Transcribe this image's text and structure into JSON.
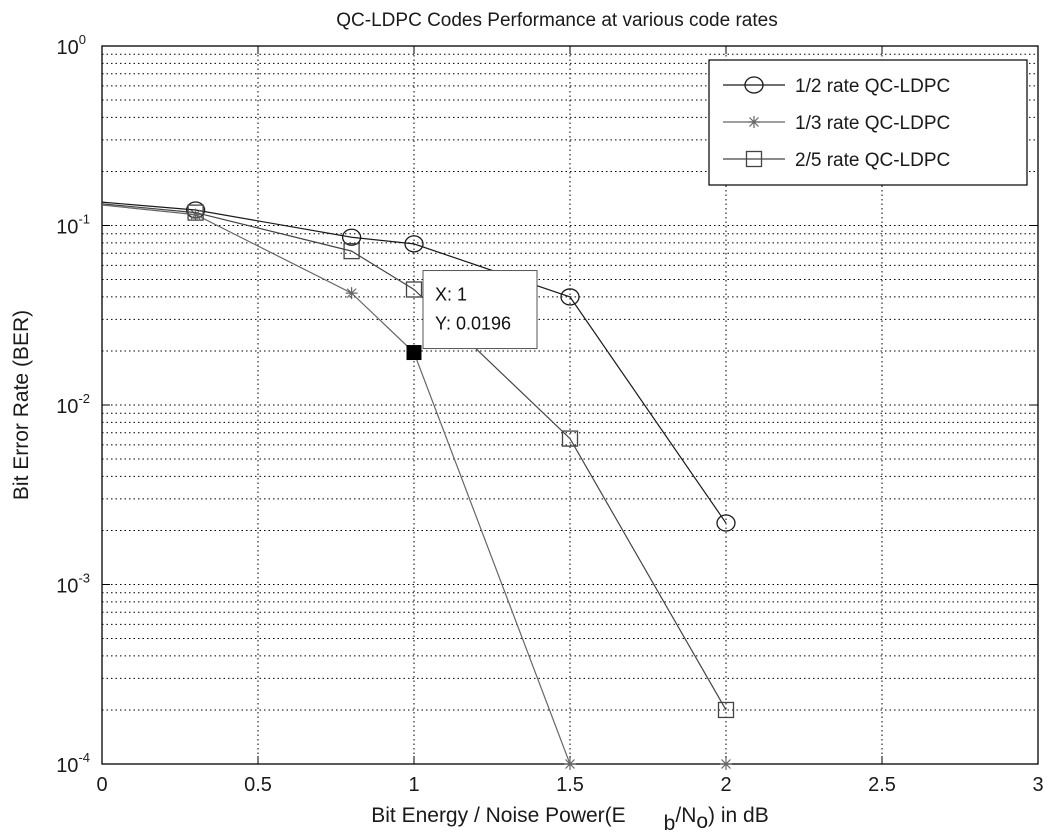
{
  "chart_data": {
    "type": "line",
    "title": "QC-LDPC  Codes Performance at various code rates",
    "xlabel": {
      "prefix": "Bit Energy / Noise Power(E",
      "sub1": "b",
      "mid": "/N",
      "sub2": "o",
      "suffix": ") in dB"
    },
    "ylabel": "Bit Error Rate (BER)",
    "xlim": [
      0,
      3
    ],
    "ylim": [
      0.0001,
      1
    ],
    "yscale": "log",
    "grid": true,
    "legend_position": "top-right",
    "x_ticks": [
      "0",
      "0.5",
      "1",
      "1.5",
      "2",
      "2.5",
      "3"
    ],
    "y_ticks": [
      {
        "base": "10",
        "exp": "0"
      },
      {
        "base": "10",
        "exp": "-1"
      },
      {
        "base": "10",
        "exp": "-2"
      },
      {
        "base": "10",
        "exp": "-3"
      },
      {
        "base": "10",
        "exp": "-4"
      }
    ],
    "series": [
      {
        "name": "1/2 rate QC-LDPC",
        "marker": "circle",
        "color": "#1a1a1a",
        "x": [
          0,
          0.3,
          0.8,
          1.0,
          1.5,
          2.0
        ],
        "y": [
          0.135,
          0.122,
          0.086,
          0.079,
          0.04,
          0.0022
        ]
      },
      {
        "name": "1/3 rate QC-LDPC",
        "marker": "star",
        "color": "#666666",
        "x": [
          0,
          0.3,
          0.8,
          1.0,
          1.5
        ],
        "y": [
          0.13,
          0.115,
          0.042,
          0.0196,
          0.0001
        ]
      },
      {
        "name": "2/5 rate QC-LDPC",
        "marker": "square",
        "color": "#444444",
        "x": [
          0,
          0.3,
          0.8,
          1.0,
          1.5,
          2.0
        ],
        "y": [
          0.132,
          0.118,
          0.072,
          0.044,
          0.0065,
          0.0002
        ]
      }
    ],
    "extra_markers": [
      {
        "marker": "star",
        "x": 2.0,
        "y": 0.0001,
        "color": "#666666"
      }
    ],
    "datatip": {
      "x": 1.0,
      "y": 0.0196,
      "line1": "X: 1",
      "line2": "Y: 0.0196"
    }
  }
}
